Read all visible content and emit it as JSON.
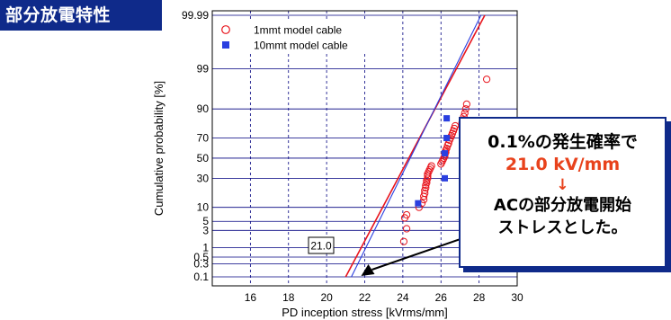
{
  "page": {
    "badge": "部分放電特性"
  },
  "callout": {
    "line1": "0.1%の発生確率で",
    "line2": "21.0 kV/mm",
    "arrow": "↓",
    "line3": "ACの部分放電開始",
    "line4": "ストレスとした。"
  },
  "marker_label": "21.0",
  "colors": {
    "series1": "#e8141c",
    "series2": "#2a3fe0",
    "badge_bg": "#0f2a8a",
    "highlight": "#e8421c"
  },
  "chart_data": {
    "type": "scatter",
    "xlabel": "PD inception stress [kVrms/mm]",
    "ylabel": "Cumulative probability  [%]",
    "xlim": [
      14,
      30
    ],
    "ylim": [
      0.1,
      99.99
    ],
    "yscale": "probability",
    "x_ticks": [
      "16",
      "18",
      "20",
      "22",
      "24",
      "26",
      "28",
      "30"
    ],
    "y_ticks": [
      "0.1",
      "0.3",
      "0.5",
      "1",
      "3",
      "5",
      "10",
      "30",
      "50",
      "70",
      "90",
      "99",
      "99.99"
    ],
    "grid": true,
    "legend": "top-left",
    "series": [
      {
        "name": "1mmt model cable",
        "marker": "open-circle",
        "points": [
          [
            24.05,
            1.5
          ],
          [
            24.2,
            3.3
          ],
          [
            24.1,
            6
          ],
          [
            24.2,
            7
          ],
          [
            24.85,
            10
          ],
          [
            25.0,
            12
          ],
          [
            25.1,
            14
          ],
          [
            25.1,
            16
          ],
          [
            25.15,
            18
          ],
          [
            25.15,
            20
          ],
          [
            25.2,
            22
          ],
          [
            25.2,
            24
          ],
          [
            25.25,
            26
          ],
          [
            25.25,
            28
          ],
          [
            25.3,
            30
          ],
          [
            25.3,
            32
          ],
          [
            25.3,
            34
          ],
          [
            25.35,
            36
          ],
          [
            25.4,
            38
          ],
          [
            25.45,
            40
          ],
          [
            25.5,
            42
          ],
          [
            26.0,
            44
          ],
          [
            26.05,
            46
          ],
          [
            26.1,
            48
          ],
          [
            26.15,
            50
          ],
          [
            26.2,
            52
          ],
          [
            26.2,
            54
          ],
          [
            26.25,
            56
          ],
          [
            26.25,
            58
          ],
          [
            26.3,
            60
          ],
          [
            26.35,
            63
          ],
          [
            26.4,
            65
          ],
          [
            26.45,
            68
          ],
          [
            26.5,
            70
          ],
          [
            26.55,
            72
          ],
          [
            26.6,
            74
          ],
          [
            26.65,
            76
          ],
          [
            26.7,
            78
          ],
          [
            26.75,
            80
          ],
          [
            27.1,
            82
          ],
          [
            27.15,
            84
          ],
          [
            27.2,
            86
          ],
          [
            27.25,
            88
          ],
          [
            27.3,
            90
          ],
          [
            27.35,
            92
          ],
          [
            28.4,
            98
          ]
        ],
        "fit_line": [
          [
            21.0,
            0.1
          ],
          [
            28.3,
            99.99
          ]
        ]
      },
      {
        "name": "10mmt model cable",
        "marker": "filled-square",
        "points": [
          [
            24.8,
            12
          ],
          [
            26.2,
            30
          ],
          [
            26.2,
            55
          ],
          [
            26.3,
            70
          ],
          [
            26.3,
            85
          ]
        ],
        "fit_line": [
          [
            21.3,
            0.1
          ],
          [
            28.1,
            99.99
          ]
        ]
      }
    ],
    "annotations": [
      {
        "text": "21.0",
        "x": 21.0,
        "y": 0.1
      }
    ]
  }
}
